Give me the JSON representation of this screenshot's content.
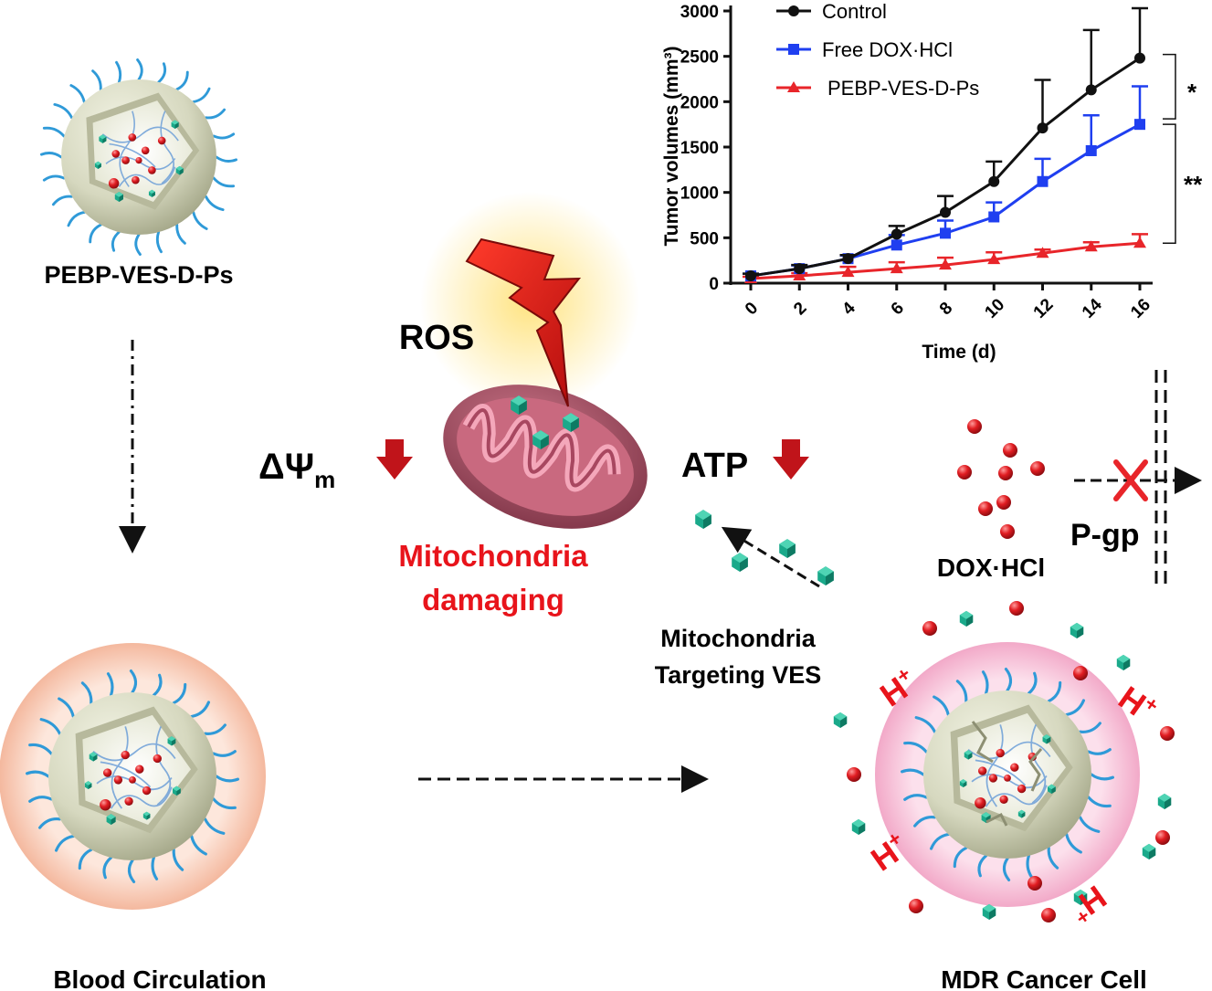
{
  "labels": {
    "particle_name": "PEBP-VES-D-Ps",
    "blood_circulation": "Blood Circulation",
    "mdr_cell": "MDR Cancer Cell",
    "ros": "ROS",
    "delta_psi": "ΔΨ",
    "delta_psi_sub": "m",
    "atp": "ATP",
    "mito_damage_line1": "Mitochondria",
    "mito_damage_line2": "damaging",
    "mito_target_line1": "Mitochondria",
    "mito_target_line2": "Targeting VES",
    "dox_hcl": "DOX·HCl",
    "pgp": "P-gp",
    "h_plus": "H",
    "plus": "+"
  },
  "colors": {
    "red_text": "#e8141b",
    "down_arrow": "#c0141a",
    "drug_dot": "#d3171c",
    "ves_crystal": "#16a085",
    "chain": "#2f9ad8",
    "shell": "#d6d8bf",
    "mito": "#9c4a5c",
    "halo_blood": "#f6c6b0",
    "halo_cell": "#f4b7d0"
  },
  "chart_data": {
    "type": "line",
    "title": "",
    "xlabel": "Time (d)",
    "ylabel": "Tumor volumes (mm³)",
    "ylim": [
      0,
      3000
    ],
    "xlim": [
      0,
      16
    ],
    "x": [
      0,
      2,
      4,
      6,
      8,
      10,
      12,
      14,
      16
    ],
    "xticks": [
      "0",
      "2",
      "4",
      "6",
      "8",
      "10",
      "12",
      "14",
      "16"
    ],
    "yticks": [
      "0",
      "500",
      "1000",
      "1500",
      "2000",
      "2500",
      "3000"
    ],
    "legend_position": "top-left",
    "series": [
      {
        "name": "Control",
        "color": "#111111",
        "marker": "circle",
        "values": [
          80,
          160,
          270,
          540,
          780,
          1120,
          1710,
          2130,
          2480
        ],
        "errors": [
          25,
          40,
          40,
          90,
          180,
          220,
          530,
          660,
          550
        ]
      },
      {
        "name": "Free DOX·HCl",
        "color": "#1f3ff0",
        "marker": "square",
        "values": [
          80,
          160,
          270,
          420,
          550,
          730,
          1120,
          1460,
          1750
        ],
        "errors": [
          25,
          35,
          35,
          110,
          140,
          160,
          250,
          390,
          420
        ]
      },
      {
        "name": "PEBP-VES-D-Ps",
        "color": "#e8252a",
        "marker": "triangle",
        "values": [
          50,
          80,
          120,
          160,
          200,
          260,
          330,
          400,
          440
        ],
        "errors": [
          20,
          30,
          60,
          70,
          80,
          80,
          40,
          50,
          100
        ]
      }
    ],
    "significance": [
      {
        "between": "Control vs Free DOX·HCl",
        "mark": "*"
      },
      {
        "between": "Free DOX·HCl vs PEBP-VES-D-Ps",
        "mark": "**"
      }
    ]
  }
}
